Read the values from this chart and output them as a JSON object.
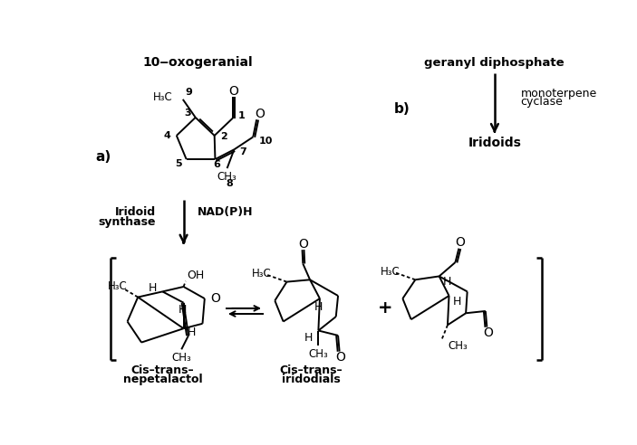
{
  "bg_color": "#ffffff",
  "fig_width": 7.03,
  "fig_height": 4.92,
  "dpi": 100,
  "title_10oxo": "10‒oxogeranial",
  "title_geranyl": "geranyl diphosphate",
  "label_a": "a)",
  "label_b": "b)",
  "label_iridoid_synth1": "Iridoid",
  "label_iridoid_synth2": "synthase",
  "label_nadph": "NAD(P)H",
  "label_monoterpene1": "monoterpene",
  "label_monoterpene2": "cyclase",
  "label_iridoids": "Iridoids",
  "label_nepetalactol1": "Cis–trans–",
  "label_nepetalactol2": "nepetalactol",
  "label_iridodials1": "Cis–trans–",
  "label_iridodials2": "iridodials"
}
